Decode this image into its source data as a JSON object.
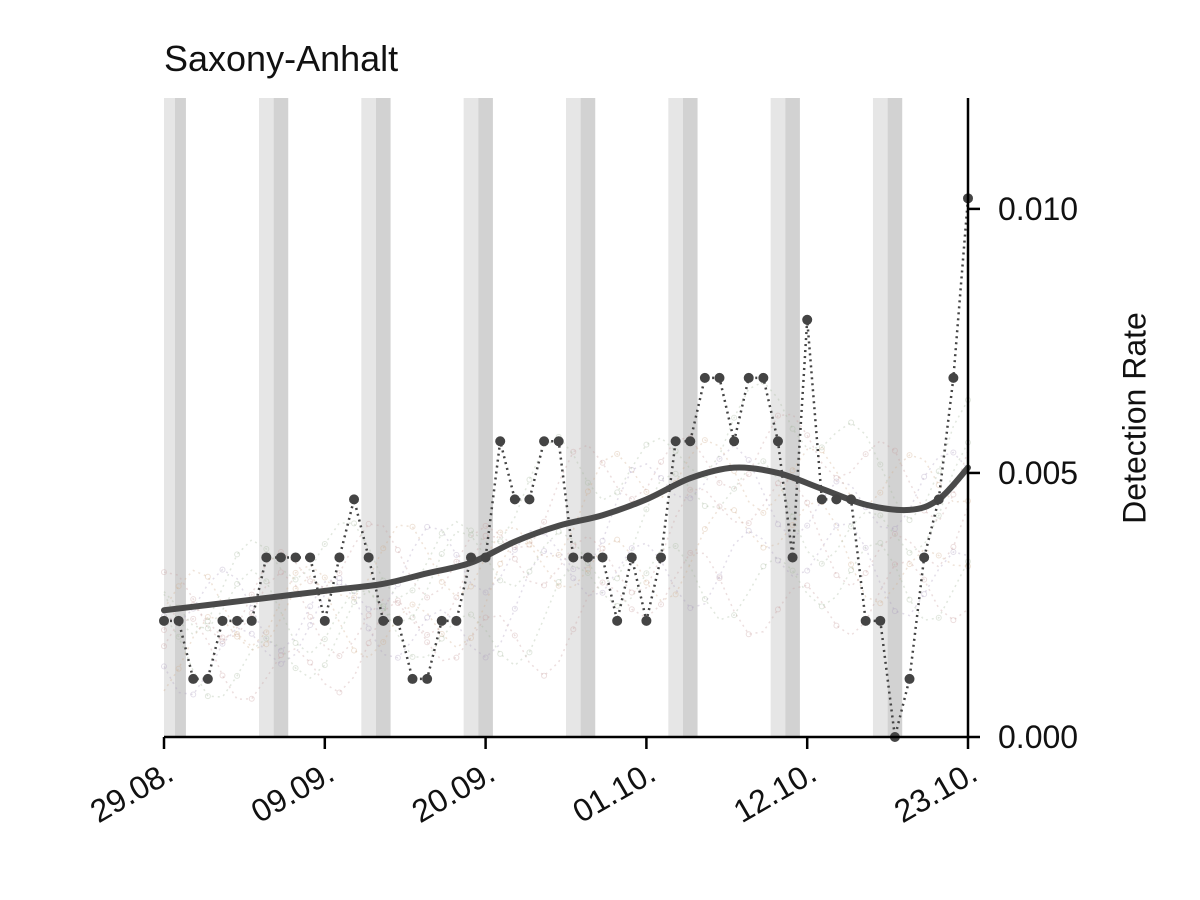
{
  "chart_data": {
    "type": "line",
    "title": "Saxony-Anhalt",
    "xlabel": "",
    "ylabel": "Detection Rate",
    "x_tick_labels": [
      "29.08.",
      "09.09.",
      "20.09.",
      "01.10.",
      "12.10.",
      "23.10."
    ],
    "x_tick_days": [
      0,
      11,
      22,
      33,
      44,
      55
    ],
    "y_ticks": [
      0.0,
      0.005,
      0.01
    ],
    "y_tick_labels": [
      "0.000",
      "0.005",
      "0.010"
    ],
    "ylim": [
      0,
      0.0121
    ],
    "xlim_days": [
      0,
      55
    ],
    "y_axis_side": "right",
    "grid": false,
    "weekend_bands": [
      {
        "start": 0,
        "end": 1.5
      },
      {
        "start": 6.5,
        "end": 8.5
      },
      {
        "start": 13.5,
        "end": 15.5
      },
      {
        "start": 20.5,
        "end": 22.5
      },
      {
        "start": 27.5,
        "end": 29.5
      },
      {
        "start": 34.5,
        "end": 36.5
      },
      {
        "start": 41.5,
        "end": 43.5
      },
      {
        "start": 48.5,
        "end": 50.5
      }
    ],
    "series": [
      {
        "style": "dotted-with-markers",
        "color": "#444444",
        "x_days": [
          0,
          1,
          2,
          3,
          4,
          5,
          6,
          7,
          8,
          9,
          10,
          11,
          12,
          13,
          14,
          15,
          16,
          17,
          18,
          19,
          20,
          21,
          22,
          23,
          24,
          25,
          26,
          27,
          28,
          29,
          30,
          31,
          32,
          33,
          34,
          35,
          36,
          37,
          38,
          39,
          40,
          41,
          42,
          43,
          44,
          45,
          46,
          47,
          48,
          49,
          50,
          51,
          52,
          53,
          54,
          55
        ],
        "values": [
          0.0022,
          0.0022,
          0.0011,
          0.0011,
          0.0022,
          0.0022,
          0.0022,
          0.0034,
          0.0034,
          0.0034,
          0.0034,
          0.0022,
          0.0034,
          0.0045,
          0.0034,
          0.0022,
          0.0022,
          0.0011,
          0.0011,
          0.0022,
          0.0022,
          0.0034,
          0.0034,
          0.0056,
          0.0045,
          0.0045,
          0.0056,
          0.0056,
          0.0034,
          0.0034,
          0.0034,
          0.0022,
          0.0034,
          0.0022,
          0.0034,
          0.0056,
          0.0056,
          0.0068,
          0.0068,
          0.0056,
          0.0068,
          0.0068,
          0.0056,
          0.0034,
          0.0079,
          0.0045,
          0.0045,
          0.0045,
          0.0022,
          0.0022,
          0.0,
          0.0011,
          0.0034,
          0.0045,
          0.0068,
          0.0102
        ]
      },
      {
        "style": "smooth-trend",
        "color": "#4a4a4a",
        "x_days": [
          0,
          3,
          6,
          9,
          12,
          15,
          18,
          21,
          24,
          27,
          30,
          33,
          36,
          39,
          42,
          45,
          48,
          51,
          53,
          55
        ],
        "values": [
          0.0024,
          0.0025,
          0.0026,
          0.0027,
          0.0028,
          0.0029,
          0.0031,
          0.0033,
          0.0037,
          0.004,
          0.0042,
          0.0045,
          0.0049,
          0.0051,
          0.005,
          0.0047,
          0.0044,
          0.0043,
          0.0045,
          0.0051
        ]
      }
    ],
    "background_series_color_palette": [
      "#c9a0a0",
      "#a9b9a0",
      "#b0a0c0",
      "#d0b090"
    ]
  }
}
